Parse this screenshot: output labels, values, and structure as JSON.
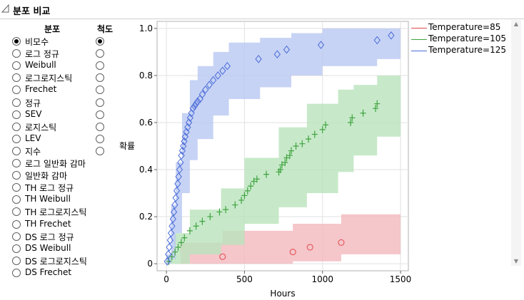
{
  "header": {
    "title": "분포 비교"
  },
  "panel": {
    "col_dist": "분포",
    "col_scale": "척도",
    "distributions": [
      {
        "label": "비모수",
        "selected": true
      },
      {
        "label": "로그 정규",
        "selected": false
      },
      {
        "label": "Weibull",
        "selected": false
      },
      {
        "label": "로그로지스틱",
        "selected": false
      },
      {
        "label": "Frechet",
        "selected": false
      },
      {
        "label": "정규",
        "selected": false
      },
      {
        "label": "SEV",
        "selected": false
      },
      {
        "label": "로지스틱",
        "selected": false
      },
      {
        "label": "LEV",
        "selected": false
      },
      {
        "label": "지수",
        "selected": false
      },
      {
        "label": "로그 일반화 감마",
        "selected": false
      },
      {
        "label": "일반화 감마",
        "selected": false
      },
      {
        "label": "TH 로그 정규",
        "selected": false
      },
      {
        "label": "TH Weibull",
        "selected": false
      },
      {
        "label": "TH 로그로지스틱",
        "selected": false
      },
      {
        "label": "TH Frechet",
        "selected": false
      },
      {
        "label": "DS 로그 정규",
        "selected": false
      },
      {
        "label": "DS Weibull",
        "selected": false
      },
      {
        "label": "DS 로그로지스틱",
        "selected": false
      },
      {
        "label": "DS Frechet",
        "selected": false
      }
    ],
    "scales": [
      true,
      false,
      false,
      false,
      false,
      false,
      false,
      false,
      false,
      false
    ]
  },
  "chart_data": {
    "type": "scatter",
    "xlabel": "Hours",
    "ylabel": "확률",
    "xlim": [
      -60,
      1550
    ],
    "ylim": [
      -0.03,
      1.03
    ],
    "x_ticks": [
      0,
      500,
      1000,
      1500
    ],
    "y_ticks": [
      0,
      0.2,
      0.4,
      0.6,
      0.8,
      1.0
    ],
    "x_tick_labels": [
      "0",
      "500",
      "1000",
      "1500"
    ],
    "y_tick_labels": [
      "0",
      "0.2",
      "0.4",
      "0.6",
      "0.8",
      "1.0"
    ],
    "grid": true,
    "legend_position": "right",
    "series": [
      {
        "name": "Temperature=85",
        "color": "#e0474c",
        "band_color": "#f2b8bd",
        "marker": "circle",
        "x": [
          360,
          810,
          920,
          1120
        ],
        "y": [
          0.03,
          0.05,
          0.07,
          0.09
        ],
        "band": [
          [
            0,
            0.0,
            0.0
          ],
          [
            90,
            0.0,
            0.09
          ],
          [
            360,
            0.0,
            0.14
          ],
          [
            810,
            0.01,
            0.17
          ],
          [
            1120,
            0.04,
            0.21
          ],
          [
            1500,
            0.04,
            0.22
          ]
        ]
      },
      {
        "name": "Temperature=105",
        "color": "#3fa33f",
        "band_color": "#b9e3bb",
        "marker": "plus",
        "x": [
          15,
          35,
          55,
          75,
          95,
          115,
          150,
          190,
          230,
          280,
          340,
          380,
          440,
          480,
          500,
          520,
          540,
          560,
          580,
          640,
          720,
          730,
          740,
          760,
          770,
          790,
          800,
          830,
          870,
          910,
          950,
          1000,
          1020,
          1180,
          1190,
          1260,
          1340,
          1350
        ],
        "y": [
          0.01,
          0.03,
          0.05,
          0.07,
          0.09,
          0.11,
          0.14,
          0.16,
          0.18,
          0.2,
          0.22,
          0.23,
          0.25,
          0.27,
          0.29,
          0.31,
          0.33,
          0.35,
          0.36,
          0.38,
          0.39,
          0.4,
          0.42,
          0.43,
          0.45,
          0.46,
          0.48,
          0.5,
          0.51,
          0.53,
          0.55,
          0.57,
          0.59,
          0.6,
          0.62,
          0.64,
          0.66,
          0.68
        ],
        "band": [
          [
            0,
            0.0,
            0.03
          ],
          [
            50,
            0.0,
            0.13
          ],
          [
            150,
            0.04,
            0.23
          ],
          [
            350,
            0.08,
            0.32
          ],
          [
            500,
            0.17,
            0.45
          ],
          [
            720,
            0.24,
            0.58
          ],
          [
            900,
            0.3,
            0.68
          ],
          [
            1100,
            0.39,
            0.74
          ],
          [
            1200,
            0.46,
            0.76
          ],
          [
            1350,
            0.54,
            0.8
          ],
          [
            1500,
            0.55,
            0.8
          ]
        ]
      },
      {
        "name": "Temperature=125",
        "color": "#4a6cd8",
        "band_color": "#b9c8f2",
        "marker": "diamond",
        "x": [
          5,
          12,
          18,
          24,
          30,
          36,
          42,
          48,
          54,
          60,
          66,
          72,
          78,
          84,
          90,
          96,
          102,
          108,
          114,
          120,
          128,
          136,
          144,
          152,
          160,
          170,
          180,
          190,
          200,
          215,
          230,
          250,
          275,
          300,
          330,
          360,
          390,
          590,
          710,
          770,
          990,
          1350,
          1440
        ],
        "y": [
          0.01,
          0.04,
          0.07,
          0.1,
          0.13,
          0.16,
          0.19,
          0.22,
          0.25,
          0.28,
          0.31,
          0.34,
          0.37,
          0.4,
          0.43,
          0.46,
          0.48,
          0.5,
          0.52,
          0.54,
          0.56,
          0.58,
          0.6,
          0.62,
          0.64,
          0.66,
          0.67,
          0.68,
          0.69,
          0.7,
          0.72,
          0.74,
          0.76,
          0.78,
          0.8,
          0.82,
          0.84,
          0.87,
          0.89,
          0.91,
          0.93,
          0.95,
          0.97
        ],
        "band": [
          [
            0,
            0.0,
            0.04
          ],
          [
            30,
            0.02,
            0.25
          ],
          [
            60,
            0.13,
            0.43
          ],
          [
            100,
            0.3,
            0.64
          ],
          [
            150,
            0.44,
            0.78
          ],
          [
            200,
            0.53,
            0.84
          ],
          [
            300,
            0.63,
            0.9
          ],
          [
            400,
            0.7,
            0.94
          ],
          [
            600,
            0.75,
            0.96
          ],
          [
            800,
            0.8,
            0.98
          ],
          [
            1000,
            0.84,
            1.0
          ],
          [
            1350,
            0.87,
            1.0
          ],
          [
            1500,
            0.87,
            1.0
          ]
        ]
      }
    ]
  }
}
